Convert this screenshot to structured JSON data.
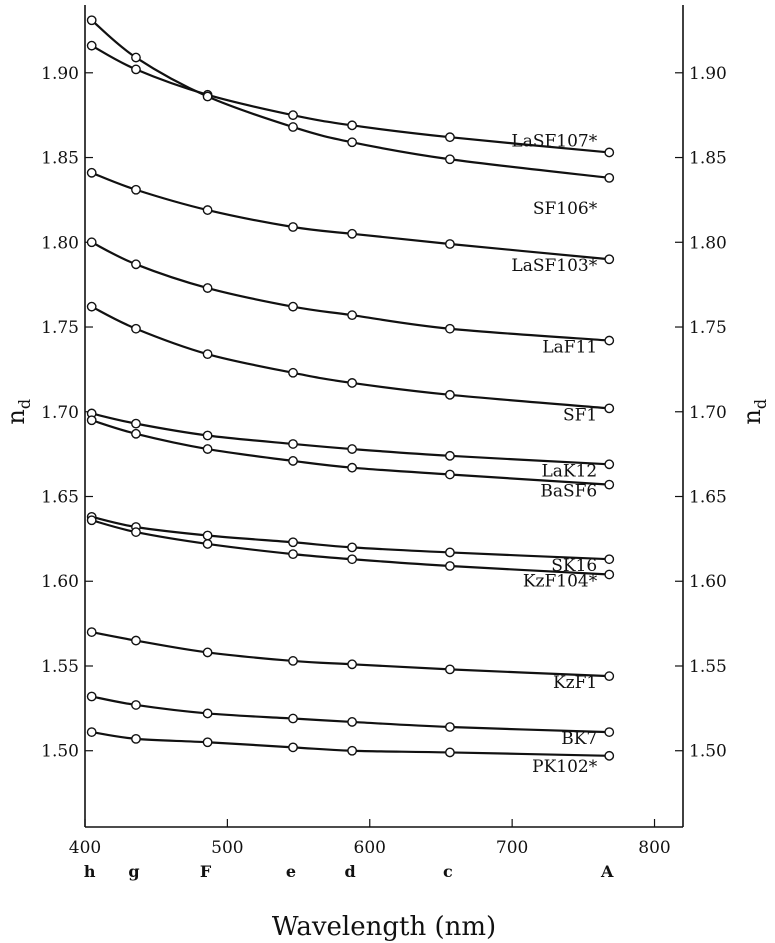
{
  "chart_data": {
    "type": "line",
    "xlabel": "Wavelength (nm)",
    "ylabel": "n",
    "ylabel_subscript": "d",
    "xlim": [
      400,
      820
    ],
    "ylim": [
      1.455,
      1.94
    ],
    "xticks": [
      400,
      500,
      600,
      700,
      800
    ],
    "yticks": [
      1.5,
      1.55,
      1.6,
      1.65,
      1.7,
      1.75,
      1.8,
      1.85,
      1.9
    ],
    "ytick_labels": [
      "1.50",
      "1.55",
      "1.60",
      "1.65",
      "1.70",
      "1.75",
      "1.80",
      "1.85",
      "1.90"
    ],
    "spectral_lines": [
      {
        "label": "h",
        "x": 404.7
      },
      {
        "label": "g",
        "x": 435.8
      },
      {
        "label": "F",
        "x": 486.1
      },
      {
        "label": "e",
        "x": 546.1
      },
      {
        "label": "d",
        "x": 587.6
      },
      {
        "label": "c",
        "x": 656.3
      },
      {
        "label": "A",
        "x": 768.2
      }
    ],
    "x": [
      404.7,
      435.8,
      486.1,
      546.1,
      587.6,
      656.3,
      768.2
    ],
    "series": [
      {
        "name": "LaSF107*",
        "values": [
          1.916,
          1.902,
          1.887,
          1.875,
          1.869,
          1.862,
          1.853
        ]
      },
      {
        "name": "SF106*",
        "values": [
          1.931,
          1.909,
          1.886,
          1.868,
          1.859,
          1.849,
          1.838
        ]
      },
      {
        "name": "LaSF103*",
        "values": [
          1.841,
          1.831,
          1.819,
          1.809,
          1.805,
          1.799,
          1.79
        ]
      },
      {
        "name": "LaF11",
        "values": [
          1.8,
          1.787,
          1.773,
          1.762,
          1.757,
          1.749,
          1.742
        ]
      },
      {
        "name": "SF1",
        "values": [
          1.762,
          1.749,
          1.734,
          1.723,
          1.717,
          1.71,
          1.702
        ]
      },
      {
        "name": "LaK12",
        "values": [
          1.699,
          1.693,
          1.686,
          1.681,
          1.678,
          1.674,
          1.669
        ]
      },
      {
        "name": "BaSF6",
        "values": [
          1.695,
          1.687,
          1.678,
          1.671,
          1.667,
          1.663,
          1.657
        ]
      },
      {
        "name": "SK16",
        "values": [
          1.638,
          1.632,
          1.627,
          1.623,
          1.62,
          1.617,
          1.613
        ]
      },
      {
        "name": "KzF104*",
        "values": [
          1.636,
          1.629,
          1.622,
          1.616,
          1.613,
          1.609,
          1.604
        ]
      },
      {
        "name": "KzF1",
        "values": [
          1.57,
          1.565,
          1.558,
          1.553,
          1.551,
          1.548,
          1.544
        ]
      },
      {
        "name": "BK7",
        "values": [
          1.532,
          1.527,
          1.522,
          1.519,
          1.517,
          1.514,
          1.511
        ]
      },
      {
        "name": "PK102*",
        "values": [
          1.511,
          1.507,
          1.505,
          1.502,
          1.5,
          1.499,
          1.497
        ]
      }
    ]
  }
}
